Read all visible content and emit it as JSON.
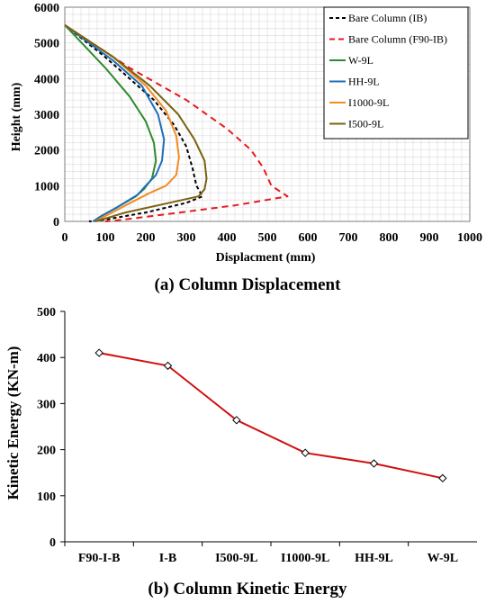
{
  "chart_data": [
    {
      "type": "line",
      "caption": "(a) Column Displacement",
      "xlabel": "Displacment (mm)",
      "ylabel": "Height (mm)",
      "xlim": [
        0,
        1000
      ],
      "ylim": [
        0,
        6000
      ],
      "xticks": [
        "0",
        "100",
        "200",
        "300",
        "400",
        "500",
        "600",
        "700",
        "800",
        "900",
        "1000"
      ],
      "yticks": [
        "0",
        "1000",
        "2000",
        "3000",
        "4000",
        "5000",
        "6000"
      ],
      "grid": true,
      "legend_position": "top-right",
      "series": [
        {
          "name": "Bare Column (IB)",
          "color": "#000000",
          "dash": "dashed",
          "points": [
            [
              0,
              5500
            ],
            [
              100,
              4600
            ],
            [
              160,
              4000
            ],
            [
              220,
              3400
            ],
            [
              270,
              2700
            ],
            [
              300,
              2100
            ],
            [
              315,
              1500
            ],
            [
              325,
              1000
            ],
            [
              340,
              700
            ],
            [
              300,
              520
            ],
            [
              200,
              250
            ],
            [
              100,
              50
            ],
            [
              60,
              0
            ]
          ]
        },
        {
          "name": "Bare Column (F90-IB)",
          "color": "#e8191c",
          "dash": "dashed",
          "points": [
            [
              0,
              5500
            ],
            [
              160,
              4300
            ],
            [
              300,
              3400
            ],
            [
              400,
              2600
            ],
            [
              460,
              2000
            ],
            [
              490,
              1500
            ],
            [
              510,
              1000
            ],
            [
              550,
              700
            ],
            [
              420,
              450
            ],
            [
              250,
              200
            ],
            [
              130,
              30
            ],
            [
              100,
              0
            ]
          ]
        },
        {
          "name": "W-9L",
          "color": "#2e8b2e",
          "dash": "solid",
          "points": [
            [
              0,
              5500
            ],
            [
              100,
              4300
            ],
            [
              160,
              3500
            ],
            [
              200,
              2800
            ],
            [
              220,
              2200
            ],
            [
              225,
              1700
            ],
            [
              215,
              1200
            ],
            [
              195,
              900
            ],
            [
              175,
              700
            ],
            [
              130,
              400
            ],
            [
              90,
              150
            ],
            [
              70,
              0
            ]
          ]
        },
        {
          "name": "HH-9L",
          "color": "#1f6fb4",
          "dash": "solid",
          "points": [
            [
              0,
              5500
            ],
            [
              120,
              4500
            ],
            [
              190,
              3800
            ],
            [
              230,
              3000
            ],
            [
              245,
              2300
            ],
            [
              240,
              1700
            ],
            [
              225,
              1300
            ],
            [
              200,
              1000
            ],
            [
              180,
              750
            ],
            [
              130,
              400
            ],
            [
              90,
              150
            ],
            [
              70,
              0
            ]
          ]
        },
        {
          "name": "I1000-9L",
          "color": "#f28c28",
          "dash": "solid",
          "points": [
            [
              0,
              5500
            ],
            [
              120,
              4600
            ],
            [
              200,
              3800
            ],
            [
              250,
              3100
            ],
            [
              275,
              2400
            ],
            [
              282,
              1800
            ],
            [
              275,
              1300
            ],
            [
              250,
              1000
            ],
            [
              210,
              800
            ],
            [
              150,
              450
            ],
            [
              100,
              150
            ],
            [
              75,
              0
            ]
          ]
        },
        {
          "name": "I500-9L",
          "color": "#7a6210",
          "dash": "solid",
          "points": [
            [
              0,
              5500
            ],
            [
              120,
              4600
            ],
            [
              210,
              3800
            ],
            [
              280,
              3000
            ],
            [
              320,
              2300
            ],
            [
              345,
              1700
            ],
            [
              350,
              1200
            ],
            [
              345,
              900
            ],
            [
              330,
              700
            ],
            [
              250,
              500
            ],
            [
              150,
              250
            ],
            [
              100,
              80
            ],
            [
              75,
              0
            ]
          ]
        }
      ]
    },
    {
      "type": "line",
      "caption": "(b) Column Kinetic Energy",
      "xlabel": "",
      "ylabel": "Kinetic Energy (KN-m)",
      "ylim": [
        0,
        500
      ],
      "yticks": [
        "0",
        "100",
        "200",
        "300",
        "400",
        "500"
      ],
      "grid": false,
      "line_color": "#d10f0f",
      "categories": [
        "F90-I-B",
        "I-B",
        "I500-9L",
        "I1000-9L",
        "HH-9L",
        "W-9L"
      ],
      "values": [
        410,
        382,
        264,
        193,
        170,
        138
      ]
    }
  ]
}
